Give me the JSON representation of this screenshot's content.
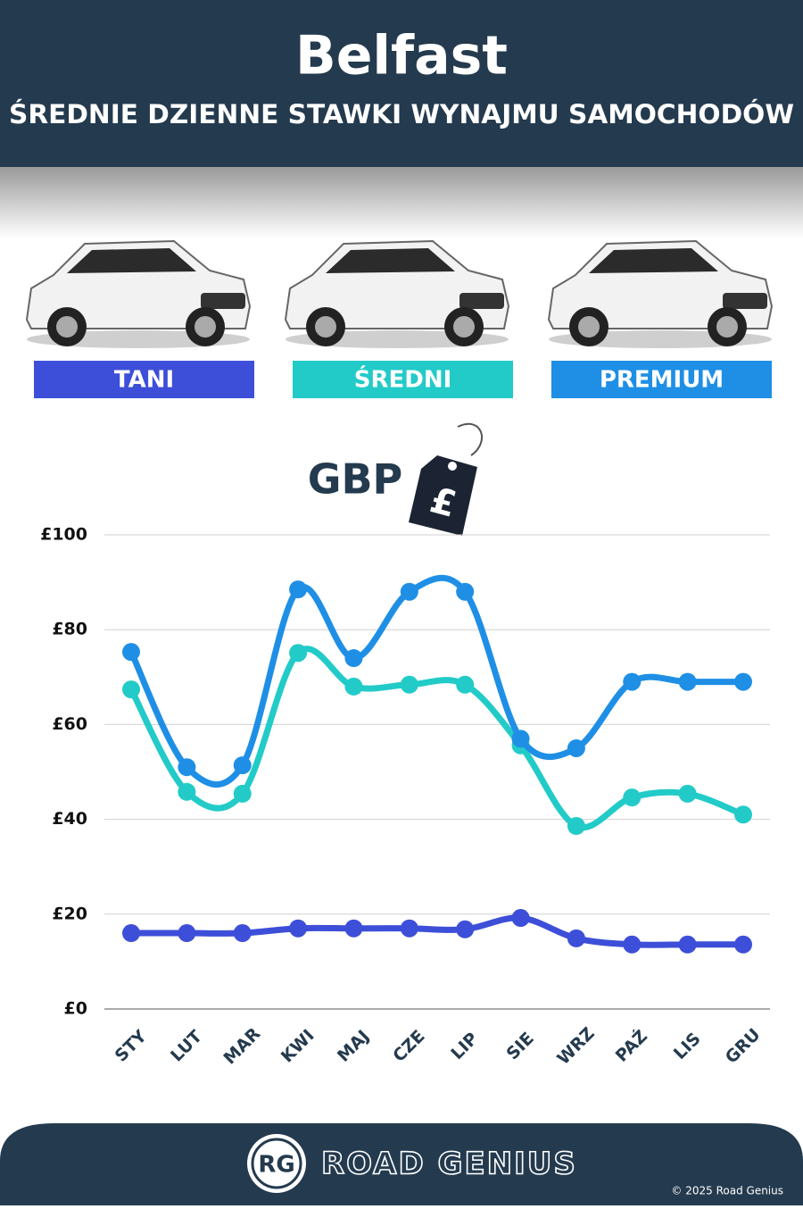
{
  "header": {
    "title": "Belfast",
    "subtitle": "ŚREDNIE DZIENNE STAWKI WYNAJMU SAMOCHODÓW"
  },
  "chart_data": {
    "type": "line",
    "y_label": "GBP",
    "currency_icon": "£",
    "categories": [
      "STY",
      "LUT",
      "MAR",
      "KWI",
      "MAJ",
      "CZE",
      "LIP",
      "SIE",
      "WRZ",
      "PAŹ",
      "LIS",
      "GRU"
    ],
    "series": [
      {
        "name": "TANI",
        "color": "#3d4fd8",
        "values": [
          16,
          16,
          16,
          17,
          17,
          17,
          16.8,
          19.2,
          14.9,
          13.6,
          13.6,
          13.6
        ]
      },
      {
        "name": "ŚREDNI",
        "color": "#22cbc8",
        "values": [
          67.4,
          45.8,
          45.4,
          75.1,
          68,
          68.4,
          68.4,
          55.6,
          38.6,
          44.6,
          45.4,
          41
        ]
      },
      {
        "name": "PREMIUM",
        "color": "#1f8fe6",
        "values": [
          75.3,
          51,
          51.4,
          88.5,
          74,
          88,
          88,
          57,
          55,
          69,
          69,
          69
        ]
      }
    ],
    "ylim": [
      0,
      100
    ],
    "yticks": [
      {
        "value": 0,
        "label": "£0"
      },
      {
        "value": 20,
        "label": "£20"
      },
      {
        "value": 40,
        "label": "£40"
      },
      {
        "value": 60,
        "label": "£60"
      },
      {
        "value": 80,
        "label": "£80"
      },
      {
        "value": 100,
        "label": "£100"
      }
    ],
    "grid": true
  },
  "footer": {
    "logo_mark": "RG",
    "brand": "ROAD GENIUS",
    "copyright": "© 2025 Road Genius"
  }
}
